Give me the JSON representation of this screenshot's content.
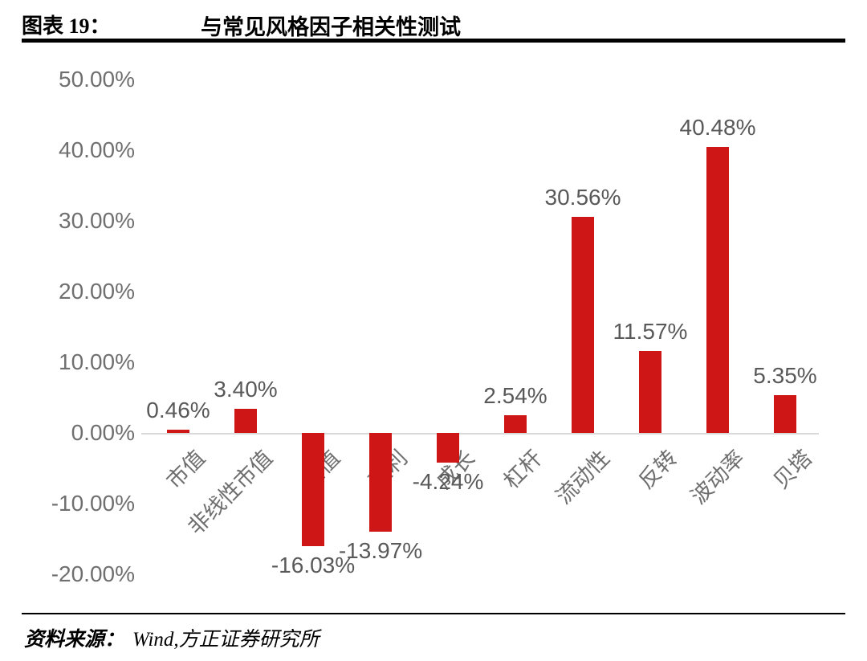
{
  "header": {
    "label": "图表 19：",
    "title": "与常见风格因子相关性测试"
  },
  "source": {
    "prefix": "资料来源：",
    "text": "Wind,方正证券研究所"
  },
  "chart_data": {
    "type": "bar",
    "title": "与常见风格因子相关性测试",
    "categories": [
      "市值",
      "非线性市值",
      "估值",
      "盈利",
      "成长",
      "杠杆",
      "流动性",
      "反转",
      "波动率",
      "贝塔"
    ],
    "values": [
      0.46,
      3.4,
      -16.03,
      -13.97,
      -4.24,
      2.54,
      30.56,
      11.57,
      40.48,
      5.35
    ],
    "value_labels": [
      "0.46%",
      "3.40%",
      "-16.03%",
      "-13.97%",
      "-4.24%",
      "2.54%",
      "30.56%",
      "11.57%",
      "40.48%",
      "5.35%"
    ],
    "xlabel": "",
    "ylabel": "",
    "ylim": [
      -20,
      50
    ],
    "ytick_labels": [
      "50.00%",
      "40.00%",
      "30.00%",
      "20.00%",
      "10.00%",
      "0.00%",
      "-10.00%",
      "-20.00%"
    ],
    "bar_color": "#ce1616",
    "grid": false,
    "legend": "none"
  }
}
